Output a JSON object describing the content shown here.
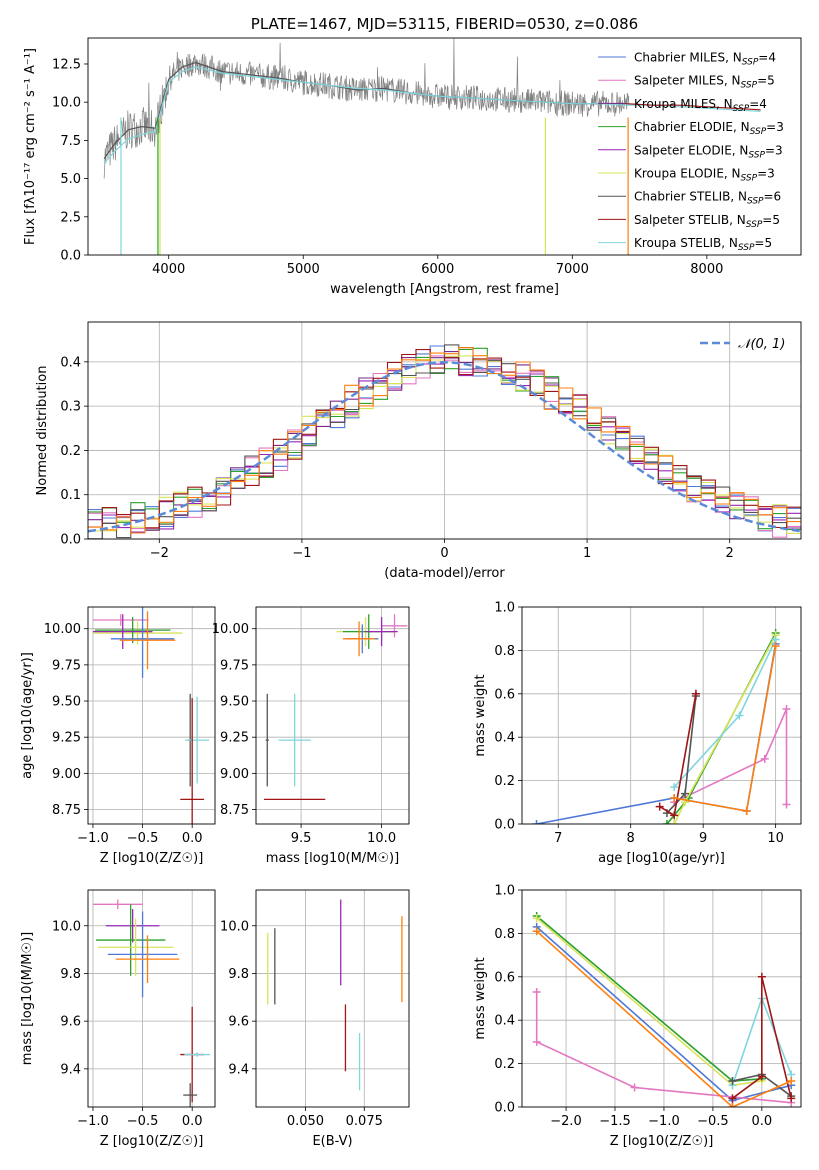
{
  "figure": {
    "title": "PLATE=1467, MJD=53115, FIBERID=0530, z=0.086"
  },
  "colors": {
    "chabrier_miles": "#4e79d8",
    "salpeter_miles": "#e377c2",
    "kroupa_miles": "#7b2a8c",
    "chabrier_elodie": "#2ca02c",
    "salpeter_elodie": "#9a27b5",
    "kroupa_elodie": "#d8e35a",
    "chabrier_stelib": "#555555",
    "salpeter_stelib": "#a01515",
    "kroupa_stelib": "#7fd6de",
    "orange": "#ff7f0e",
    "normal": "#5b8bd6"
  },
  "chart_data": [
    {
      "id": "spectrum",
      "type": "line",
      "title": "PLATE=1467, MJD=53115, FIBERID=0530, z=0.086",
      "xlabel": "wavelength [Angstrom, rest frame]",
      "ylabel": "Flux [fλ10⁻¹⁷ erg cm⁻² s⁻¹ A⁻¹]",
      "xlim": [
        3400,
        8700
      ],
      "ylim": [
        0,
        14.2
      ],
      "xticks": [
        "4000",
        "5000",
        "6000",
        "7000",
        "8000"
      ],
      "yticks": [
        "0.0",
        "2.5",
        "5.0",
        "7.5",
        "10.0",
        "12.5"
      ],
      "grid": false,
      "legend": "right",
      "legend_entries": [
        {
          "main": "Chabrier MILES, N",
          "sub": "SSP",
          "tail": "=4"
        },
        {
          "main": "Salpeter MILES, N",
          "sub": "SSP",
          "tail": "=5"
        },
        {
          "main": "Kroupa MILES, N",
          "sub": "SSP",
          "tail": "=4"
        },
        {
          "main": "Chabrier ELODIE, N",
          "sub": "SSP",
          "tail": "=3"
        },
        {
          "main": "Salpeter ELODIE, N",
          "sub": "SSP",
          "tail": "=3"
        },
        {
          "main": "Kroupa ELODIE, N",
          "sub": "SSP",
          "tail": "=3"
        },
        {
          "main": "Chabrier STELIB, N",
          "sub": "SSP",
          "tail": "=6"
        },
        {
          "main": "Salpeter STELIB, N",
          "sub": "SSP",
          "tail": "=5"
        },
        {
          "main": "Kroupa STELIB, N",
          "sub": "SSP",
          "tail": "=5"
        }
      ],
      "series": [
        {
          "name": "Chabrier STELIB, NSSP=6",
          "x": [
            3520,
            3600,
            3700,
            3800,
            3900,
            4000,
            4100,
            4200,
            4400,
            4600,
            4800,
            5000,
            5200,
            5400,
            5600,
            5800,
            6000,
            6200,
            6400,
            6600,
            6800,
            7000,
            7200,
            7400
          ],
          "y": [
            6.3,
            7.3,
            8.2,
            8.4,
            8.3,
            11.5,
            12.3,
            12.6,
            12.0,
            11.8,
            11.6,
            11.3,
            11.1,
            10.8,
            10.9,
            10.6,
            10.4,
            10.3,
            10.2,
            10.1,
            10.0,
            9.9,
            9.9,
            9.9
          ]
        },
        {
          "name": "Kroupa STELIB, NSSP=5",
          "x": [
            3520,
            3600,
            3700,
            3800,
            3900,
            4000,
            4100,
            4200,
            4400,
            4600,
            4800,
            5000,
            5200,
            5400,
            5600,
            5800,
            6000,
            6200,
            6400,
            6600,
            6800,
            7000,
            7200,
            7400,
            7600,
            7800,
            8000,
            8200,
            8400
          ],
          "y": [
            6.0,
            6.8,
            7.6,
            7.9,
            8.1,
            11.3,
            12.0,
            12.3,
            11.9,
            11.7,
            11.5,
            11.3,
            11.1,
            10.9,
            10.8,
            10.6,
            10.4,
            10.3,
            10.2,
            10.1,
            10.0,
            9.9,
            9.9,
            9.8,
            9.8,
            9.7,
            9.6,
            9.5,
            9.4
          ]
        },
        {
          "name": "Salpeter STELIB, NSSP=5",
          "x": [
            7400,
            7600,
            7800,
            8000,
            8200,
            8400
          ],
          "y": [
            9.9,
            9.8,
            9.8,
            9.7,
            9.6,
            9.5
          ]
        }
      ]
    },
    {
      "id": "residuals",
      "type": "histogram",
      "xlabel": "(data-model)/error",
      "ylabel": "Normed distribution",
      "xlim": [
        -2.5,
        2.5
      ],
      "ylim": [
        0,
        0.49
      ],
      "xticks": [
        "−2",
        "−1",
        "0",
        "1",
        "2"
      ],
      "yticks": [
        "0.0",
        "0.1",
        "0.2",
        "0.3",
        "0.4"
      ],
      "grid": true,
      "legend": "top-right",
      "legend_entry": "𝒩(0, 1)",
      "bin_edges_start": -2.5,
      "bin_width": 0.1,
      "base_values": [
        0.03,
        0.035,
        0.04,
        0.045,
        0.05,
        0.06,
        0.07,
        0.08,
        0.095,
        0.11,
        0.13,
        0.15,
        0.17,
        0.19,
        0.215,
        0.24,
        0.26,
        0.285,
        0.31,
        0.33,
        0.35,
        0.37,
        0.385,
        0.395,
        0.4,
        0.41,
        0.405,
        0.4,
        0.39,
        0.38,
        0.37,
        0.35,
        0.33,
        0.31,
        0.29,
        0.27,
        0.25,
        0.23,
        0.2,
        0.18,
        0.16,
        0.14,
        0.12,
        0.1,
        0.085,
        0.07,
        0.06,
        0.05,
        0.04,
        0.035
      ]
    },
    {
      "id": "age_vs_Z",
      "type": "scatter",
      "xlabel": "Z [log10(Z/Z☉)]",
      "ylabel": "age  [log10(age/yr)]",
      "xlim": [
        -1.05,
        0.23
      ],
      "ylim": [
        8.65,
        10.15
      ],
      "xticks": [
        "−1.0",
        "−0.5",
        "0.0"
      ],
      "yticks": [
        "8.75",
        "9.00",
        "9.25",
        "9.50",
        "9.75",
        "10.00"
      ],
      "grid": true,
      "points": [
        {
          "x": -0.72,
          "y": 10.06,
          "xerr": 0.28,
          "yerr": 0.04,
          "c": "salpeter_miles"
        },
        {
          "x": -0.55,
          "y": 9.97,
          "xerr": 0.45,
          "yerr": 0.08,
          "c": "kroupa_elodie"
        },
        {
          "x": -0.6,
          "y": 9.99,
          "xerr": 0.38,
          "yerr": 0.09,
          "c": "chabrier_elodie"
        },
        {
          "x": -0.7,
          "y": 9.98,
          "xerr": 0.3,
          "yerr": 0.12,
          "c": "salpeter_elodie"
        },
        {
          "x": -0.5,
          "y": 9.93,
          "xerr": 0.32,
          "yerr": 0.27,
          "c": "chabrier_miles"
        },
        {
          "x": -0.45,
          "y": 9.92,
          "xerr": 0.28,
          "yerr": 0.2,
          "c": "orange"
        },
        {
          "x": -0.02,
          "y": 9.23,
          "xerr": 0.02,
          "yerr": 0.32,
          "c": "chabrier_stelib"
        },
        {
          "x": 0.05,
          "y": 9.23,
          "xerr": 0.12,
          "yerr": 0.3,
          "c": "kroupa_stelib"
        },
        {
          "x": 0.0,
          "y": 8.82,
          "xerr": 0.12,
          "yerr": 0.7,
          "c": "salpeter_stelib"
        }
      ]
    },
    {
      "id": "age_vs_mass",
      "type": "scatter",
      "xlabel": "mass [log10(M/M☉)]",
      "ylabel": "",
      "xlim": [
        9.22,
        10.17
      ],
      "ylim": [
        8.65,
        10.15
      ],
      "xticks": [
        "9.5",
        "10.0"
      ],
      "yticks": [
        "8.75",
        "9.00",
        "9.25",
        "9.50",
        "9.75",
        "10.00"
      ],
      "grid": true,
      "points": [
        {
          "x": 10.08,
          "y": 10.02,
          "xerr": 0.08,
          "yerr": 0.08,
          "c": "salpeter_miles"
        },
        {
          "x": 9.9,
          "y": 9.98,
          "xerr": 0.18,
          "yerr": 0.1,
          "c": "kroupa_elodie"
        },
        {
          "x": 9.92,
          "y": 9.98,
          "xerr": 0.16,
          "yerr": 0.12,
          "c": "chabrier_elodie"
        },
        {
          "x": 10.0,
          "y": 9.98,
          "xerr": 0.1,
          "yerr": 0.1,
          "c": "salpeter_elodie"
        },
        {
          "x": 9.88,
          "y": 9.93,
          "xerr": 0.1,
          "yerr": 0.1,
          "c": "chabrier_miles"
        },
        {
          "x": 9.86,
          "y": 9.93,
          "xerr": 0.1,
          "yerr": 0.12,
          "c": "orange"
        },
        {
          "x": 9.29,
          "y": 9.23,
          "xerr": 0.01,
          "yerr": 0.32,
          "c": "chabrier_stelib"
        },
        {
          "x": 9.46,
          "y": 9.23,
          "xerr": 0.1,
          "yerr": 0.32,
          "c": "kroupa_stelib"
        },
        {
          "x": 9.46,
          "y": 8.82,
          "xerr": 0.19,
          "yerr": 0.0,
          "c": "salpeter_stelib"
        }
      ]
    },
    {
      "id": "mass_weight_vs_age",
      "type": "line",
      "xlabel": "age  [log10(age/yr)]",
      "ylabel": "mass weight",
      "xlim": [
        6.5,
        10.35
      ],
      "ylim": [
        0,
        1.0
      ],
      "xticks": [
        "7",
        "8",
        "9",
        "10"
      ],
      "yticks": [
        "0.0",
        "0.2",
        "0.4",
        "0.6",
        "0.8",
        "1.0"
      ],
      "grid": true,
      "series": [
        {
          "name": "Chabrier MILES",
          "c": "chabrier_miles",
          "x": [
            6.7,
            8.6,
            9.6,
            10.0
          ],
          "y": [
            0.0,
            0.12,
            0.06,
            0.83
          ]
        },
        {
          "name": "Salpeter MILES",
          "c": "salpeter_miles",
          "x": [
            8.6,
            9.85,
            10.15,
            10.15
          ],
          "y": [
            0.1,
            0.3,
            0.53,
            0.09
          ]
        },
        {
          "name": "Chabrier ELODIE",
          "c": "chabrier_elodie",
          "x": [
            8.5,
            8.8,
            10.0
          ],
          "y": [
            0.0,
            0.12,
            0.88
          ]
        },
        {
          "name": "Kroupa ELODIE",
          "c": "kroupa_elodie",
          "x": [
            8.6,
            8.75,
            10.0
          ],
          "y": [
            0.0,
            0.1,
            0.87
          ]
        },
        {
          "name": "Kroupa STELIB",
          "c": "kroupa_stelib",
          "x": [
            8.6,
            9.5,
            10.0
          ],
          "y": [
            0.17,
            0.5,
            0.85
          ]
        },
        {
          "name": "Chabrier STELIB",
          "c": "chabrier_stelib",
          "x": [
            8.5,
            8.75,
            8.9
          ],
          "y": [
            0.05,
            0.14,
            0.59
          ]
        },
        {
          "name": "Salpeter STELIB",
          "c": "salpeter_stelib",
          "x": [
            8.4,
            8.6,
            8.9
          ],
          "y": [
            0.08,
            0.04,
            0.6
          ]
        },
        {
          "name": "Orange",
          "c": "orange",
          "x": [
            8.6,
            9.6,
            10.0
          ],
          "y": [
            0.12,
            0.06,
            0.82
          ]
        }
      ]
    },
    {
      "id": "mass_vs_Z",
      "type": "scatter",
      "xlabel": "Z [log10(Z/Z☉)]",
      "ylabel": "mass [log10(M/M☉)]",
      "xlim": [
        -1.05,
        0.23
      ],
      "ylim": [
        9.24,
        10.15
      ],
      "xticks": [
        "−1.0",
        "−0.5",
        "0.0"
      ],
      "yticks": [
        "9.4",
        "9.6",
        "9.8",
        "10.0"
      ],
      "grid": true,
      "points": [
        {
          "x": -0.75,
          "y": 10.09,
          "xerr": 0.25,
          "yerr": 0.02,
          "c": "salpeter_miles"
        },
        {
          "x": -0.6,
          "y": 10.0,
          "xerr": 0.27,
          "yerr": 0.07,
          "c": "salpeter_elodie"
        },
        {
          "x": -0.62,
          "y": 9.94,
          "xerr": 0.35,
          "yerr": 0.15,
          "c": "chabrier_elodie"
        },
        {
          "x": -0.57,
          "y": 9.91,
          "xerr": 0.38,
          "yerr": 0.12,
          "c": "kroupa_elodie"
        },
        {
          "x": -0.5,
          "y": 9.88,
          "xerr": 0.35,
          "yerr": 0.18,
          "c": "chabrier_miles"
        },
        {
          "x": -0.45,
          "y": 9.86,
          "xerr": 0.32,
          "yerr": 0.1,
          "c": "orange"
        },
        {
          "x": 0.0,
          "y": 9.46,
          "xerr": 0.12,
          "yerr": 0.2,
          "c": "salpeter_stelib"
        },
        {
          "x": 0.05,
          "y": 9.46,
          "xerr": 0.13,
          "yerr": 0.01,
          "c": "kroupa_stelib"
        },
        {
          "x": -0.02,
          "y": 9.29,
          "xerr": 0.07,
          "yerr": 0.05,
          "c": "chabrier_stelib"
        }
      ]
    },
    {
      "id": "mass_vs_EBV",
      "type": "scatter",
      "xlabel": "E(B-V)",
      "ylabel": "",
      "xlim": [
        0.029,
        0.094
      ],
      "ylim": [
        9.24,
        10.15
      ],
      "xticks": [
        "0.050",
        "0.075"
      ],
      "yticks": [
        "9.4",
        "9.6",
        "9.8",
        "10.0"
      ],
      "grid": true,
      "points": [
        {
          "x": 0.034,
          "y": 9.82,
          "xerr": 0.0,
          "yerr": 0.15,
          "c": "kroupa_elodie"
        },
        {
          "x": 0.037,
          "y": 9.83,
          "xerr": 0.0,
          "yerr": 0.16,
          "c": "chabrier_stelib"
        },
        {
          "x": 0.065,
          "y": 9.93,
          "xerr": 0.0,
          "yerr": 0.18,
          "c": "salpeter_elodie"
        },
        {
          "x": 0.067,
          "y": 9.53,
          "xerr": 0.0,
          "yerr": 0.14,
          "c": "salpeter_stelib"
        },
        {
          "x": 0.073,
          "y": 9.43,
          "xerr": 0.0,
          "yerr": 0.12,
          "c": "kroupa_stelib"
        },
        {
          "x": 0.091,
          "y": 9.86,
          "xerr": 0.0,
          "yerr": 0.18,
          "c": "orange"
        }
      ]
    },
    {
      "id": "mass_weight_vs_Z",
      "type": "line",
      "xlabel": "Z [log10(Z/Z☉)]",
      "ylabel": "mass weight",
      "xlim": [
        -2.45,
        0.4
      ],
      "ylim": [
        0,
        1.0
      ],
      "xticks": [
        "−2.0",
        "−1.5",
        "−1.0",
        "−0.5",
        "0.0"
      ],
      "yticks": [
        "0.0",
        "0.2",
        "0.4",
        "0.6",
        "0.8",
        "1.0"
      ],
      "grid": true,
      "series": [
        {
          "name": "Chabrier MILES",
          "c": "chabrier_miles",
          "x": [
            -2.3,
            -0.3,
            0.3
          ],
          "y": [
            0.83,
            0.03,
            0.1
          ]
        },
        {
          "name": "Salpeter MILES",
          "c": "salpeter_miles",
          "x": [
            -2.3,
            -2.3,
            -1.3,
            0.3
          ],
          "y": [
            0.53,
            0.3,
            0.09,
            0.02
          ]
        },
        {
          "name": "Chabrier ELODIE",
          "c": "chabrier_elodie",
          "x": [
            -2.3,
            -0.3,
            0.0
          ],
          "y": [
            0.88,
            0.12,
            0.13
          ]
        },
        {
          "name": "Kroupa ELODIE",
          "c": "kroupa_elodie",
          "x": [
            -2.3,
            -0.3,
            0.0
          ],
          "y": [
            0.87,
            0.1,
            0.12
          ]
        },
        {
          "name": "Kroupa STELIB",
          "c": "kroupa_stelib",
          "x": [
            -0.3,
            0.0,
            0.3
          ],
          "y": [
            0.1,
            0.5,
            0.15
          ]
        },
        {
          "name": "Chabrier STELIB",
          "c": "chabrier_stelib",
          "x": [
            -0.3,
            0.0,
            0.3
          ],
          "y": [
            0.12,
            0.15,
            0.05
          ]
        },
        {
          "name": "Salpeter STELIB",
          "c": "salpeter_stelib",
          "x": [
            -0.3,
            0.0,
            0.0,
            0.3
          ],
          "y": [
            0.04,
            0.14,
            0.6,
            0.04
          ]
        },
        {
          "name": "Orange",
          "c": "orange",
          "x": [
            -2.3,
            -0.3,
            0.3
          ],
          "y": [
            0.81,
            0.0,
            0.12
          ]
        }
      ]
    }
  ]
}
